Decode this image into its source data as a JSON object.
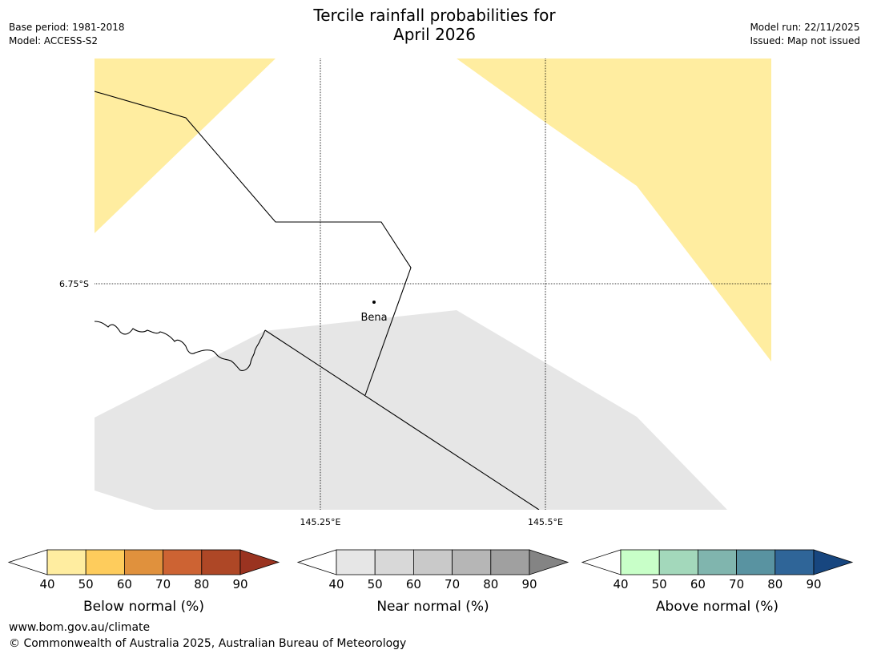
{
  "header": {
    "title_line1": "Tercile rainfall probabilities for",
    "title_line2": "April 2026",
    "base_period": "Base period: 1981-2018",
    "model": "Model: ACCESS-S2",
    "model_run": "Model run: 22/11/2025",
    "issued": "Issued: Map not issued"
  },
  "map": {
    "lat_labels": [
      "6.75°S"
    ],
    "lon_labels": [
      "145.25°E",
      "145.5°E"
    ],
    "place_label": "Bena",
    "colors": {
      "below_normal_fill": "#ffeda0",
      "near_normal_fill": "#e6e6e6",
      "border_line": "#000000",
      "graticule": "#000000"
    }
  },
  "legends": [
    {
      "title": "Below normal (%)",
      "ticks": [
        "40",
        "50",
        "60",
        "70",
        "80",
        "90"
      ],
      "colors": [
        "#ffffff",
        "#ffeda0",
        "#fecc5c",
        "#e0913d",
        "#cd6333",
        "#ae4726",
        "#9a3320"
      ]
    },
    {
      "title": "Near normal (%)",
      "ticks": [
        "40",
        "50",
        "60",
        "70",
        "80",
        "90"
      ],
      "colors": [
        "#ffffff",
        "#e6e6e6",
        "#d8d8d8",
        "#c9c9c9",
        "#b6b6b6",
        "#a0a0a0",
        "#848484"
      ]
    },
    {
      "title": "Above normal (%)",
      "ticks": [
        "40",
        "50",
        "60",
        "70",
        "80",
        "90"
      ],
      "colors": [
        "#ffffff",
        "#c8ffc8",
        "#a3d8bb",
        "#80b5ae",
        "#5993a1",
        "#2f6598",
        "#17467f"
      ]
    }
  ],
  "footer": {
    "url": "www.bom.gov.au/climate",
    "copyright": "© Commonwealth of Australia 2025, Australian Bureau of Meteorology"
  }
}
